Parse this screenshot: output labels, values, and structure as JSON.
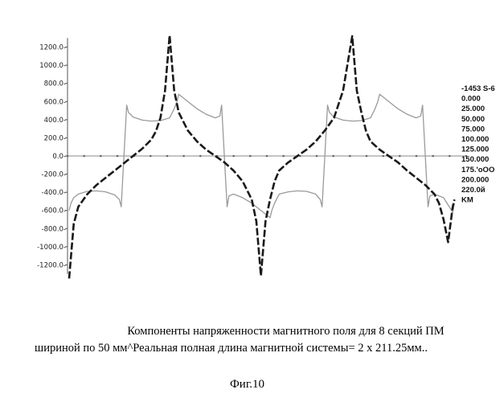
{
  "chart_data": {
    "type": "line",
    "ylim": [
      -1400,
      1400
    ],
    "xlim": [
      0,
      422.5
    ],
    "y_ticks": [
      {
        "value": 1200,
        "label": "1200.0-"
      },
      {
        "value": 1000,
        "label": "1000.0-"
      },
      {
        "value": 800,
        "label": "800.0-"
      },
      {
        "value": 600,
        "label": "600.0-"
      },
      {
        "value": 400,
        "label": "400.0-"
      },
      {
        "value": 200,
        "label": "200.0-"
      },
      {
        "value": 0,
        "label": "0.0-"
      },
      {
        "value": -200,
        "label": "-200.0-"
      },
      {
        "value": -400,
        "label": "-400.0-"
      },
      {
        "value": -600,
        "label": "-600.0-"
      },
      {
        "value": -800,
        "label": "-800.0-"
      },
      {
        "value": -1000,
        "label": "-1000.0-"
      },
      {
        "value": -1200,
        "label": "-1200.0-"
      }
    ],
    "legend": [
      "-1453 S-6",
      "0.000",
      "25.000",
      "50.000",
      "75.000",
      "100.000",
      "125.000",
      "150.000",
      "175.'oOO",
      "200.000",
      "220.0й",
      "KM"
    ],
    "series": [
      {
        "style": "dashed",
        "x": [
          0,
          5,
          10,
          20,
          30,
          40,
          50,
          60,
          70,
          80,
          90,
          95,
          100,
          105,
          110,
          115,
          120,
          130,
          140,
          150,
          160,
          170,
          180,
          190,
          200,
          205,
          210,
          215,
          220,
          225,
          230,
          240,
          250,
          260,
          270,
          280,
          290,
          300,
          310,
          315,
          320,
          325,
          330,
          340,
          350,
          360,
          370,
          380,
          390,
          400,
          405,
          410,
          415,
          420,
          422
        ],
        "values": [
          -1350,
          -750,
          -560,
          -420,
          -320,
          -240,
          -160,
          -80,
          0,
          80,
          180,
          270,
          420,
          720,
          1330,
          720,
          480,
          280,
          160,
          70,
          0,
          -70,
          -160,
          -280,
          -480,
          -720,
          -1320,
          -720,
          -480,
          -280,
          -160,
          -70,
          0,
          70,
          160,
          280,
          420,
          720,
          1320,
          720,
          480,
          280,
          160,
          70,
          0,
          -70,
          -160,
          -240,
          -320,
          -420,
          -520,
          -700,
          -950,
          -560,
          -480
        ]
      },
      {
        "style": "solid-light",
        "x": [
          0,
          2,
          5,
          10,
          20,
          30,
          40,
          50,
          55,
          57,
          60,
          63,
          65,
          70,
          80,
          90,
          100,
          110,
          112,
          115,
          118,
          120,
          130,
          140,
          150,
          160,
          165,
          167,
          170,
          173,
          175,
          180,
          190,
          200,
          210,
          220,
          222,
          225,
          228,
          230,
          240,
          250,
          260,
          270,
          275,
          277,
          280,
          283,
          285,
          290,
          300,
          310,
          320,
          330,
          332,
          335,
          338,
          340,
          350,
          360,
          370,
          380,
          385,
          387,
          390,
          393,
          395,
          400,
          410,
          415,
          420,
          422
        ],
        "values": [
          -600,
          -520,
          -460,
          -420,
          -390,
          -385,
          -395,
          -430,
          -480,
          -560,
          0,
          560,
          480,
          430,
          395,
          385,
          390,
          420,
          460,
          520,
          600,
          680,
          600,
          520,
          460,
          420,
          440,
          560,
          0,
          -560,
          -440,
          -420,
          -460,
          -520,
          -600,
          -680,
          -600,
          -520,
          -460,
          -420,
          -395,
          -385,
          -390,
          -420,
          -480,
          -560,
          0,
          560,
          480,
          430,
          395,
          385,
          390,
          420,
          460,
          520,
          600,
          680,
          600,
          520,
          460,
          420,
          440,
          560,
          0,
          -560,
          -440,
          -420,
          -460,
          -540,
          -620,
          -520
        ]
      }
    ]
  },
  "caption": {
    "line1": "Компоненты напряженности магнитного поля для 8 секций ПМ",
    "line2": "шириной по 50 мм^Реальная полная длина магнитной системы= 2 x 211.25мм..",
    "figure": "Фиг.10"
  }
}
